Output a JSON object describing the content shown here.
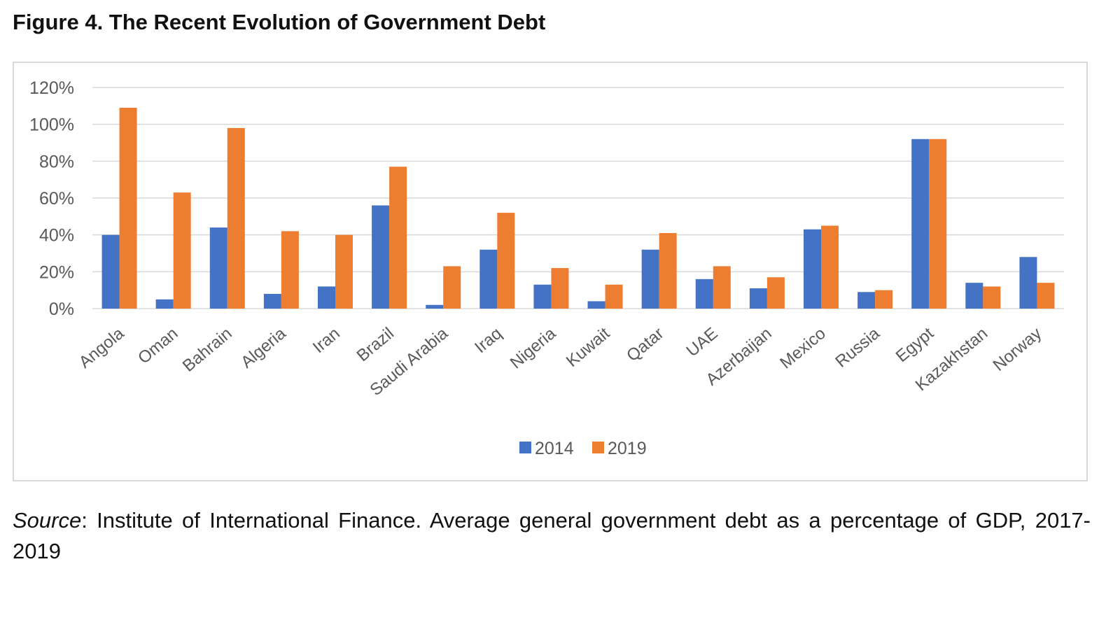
{
  "figure": {
    "title": "Figure 4. The Recent Evolution of Government Debt"
  },
  "source": {
    "label": "Source",
    "text": ": Institute of International Finance. Average general government debt as a percentage of GDP, 2017-2019"
  },
  "colors": {
    "series_2014": "#4472c4",
    "series_2019": "#ed7d31",
    "gridline": "#d9d9d9",
    "axis_text": "#595959"
  },
  "chart_data": {
    "type": "bar",
    "title": "",
    "xlabel": "",
    "ylabel": "",
    "ylim": [
      0,
      120
    ],
    "yticks": [
      0,
      20,
      40,
      60,
      80,
      100,
      120
    ],
    "ytick_labels": [
      "0%",
      "20%",
      "40%",
      "60%",
      "80%",
      "100%",
      "120%"
    ],
    "grid": true,
    "legend_position": "bottom",
    "categories": [
      "Angola",
      "Oman",
      "Bahrain",
      "Algeria",
      "Iran",
      "Brazil",
      "Saudi Arabia",
      "Iraq",
      "Nigeria",
      "Kuwait",
      "Qatar",
      "UAE",
      "Azerbaijan",
      "Mexico",
      "Russia",
      "Egypt",
      "Kazakhstan",
      "Norway"
    ],
    "series": [
      {
        "name": "2014",
        "values": [
          40,
          5,
          44,
          8,
          12,
          56,
          2,
          32,
          13,
          4,
          32,
          16,
          11,
          43,
          9,
          92,
          14,
          28
        ]
      },
      {
        "name": "2019",
        "values": [
          109,
          63,
          98,
          42,
          40,
          77,
          23,
          52,
          22,
          13,
          41,
          23,
          17,
          45,
          10,
          92,
          12,
          14
        ]
      }
    ]
  }
}
